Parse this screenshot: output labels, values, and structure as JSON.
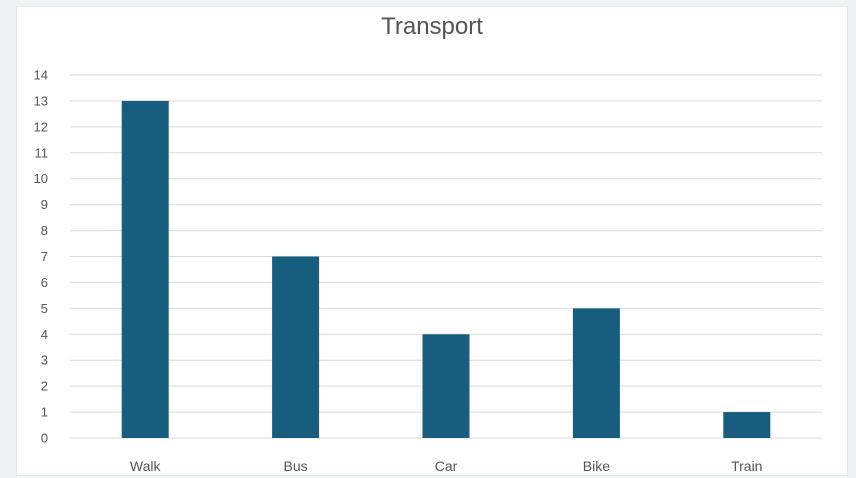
{
  "chart_data": {
    "type": "bar",
    "title": "Transport",
    "xlabel": "",
    "ylabel": "",
    "categories": [
      "Walk",
      "Bus",
      "Car",
      "Bike",
      "Train"
    ],
    "values": [
      13,
      7,
      4,
      5,
      1
    ],
    "ylim": [
      0,
      14
    ],
    "yticks": [
      "0",
      "1",
      "2",
      "3",
      "4",
      "5",
      "6",
      "7",
      "8",
      "9",
      "10",
      "11",
      "12",
      "13",
      "14"
    ],
    "grid": true,
    "bar_color": "#175e7e",
    "grid_color": "#d9d9d9"
  }
}
